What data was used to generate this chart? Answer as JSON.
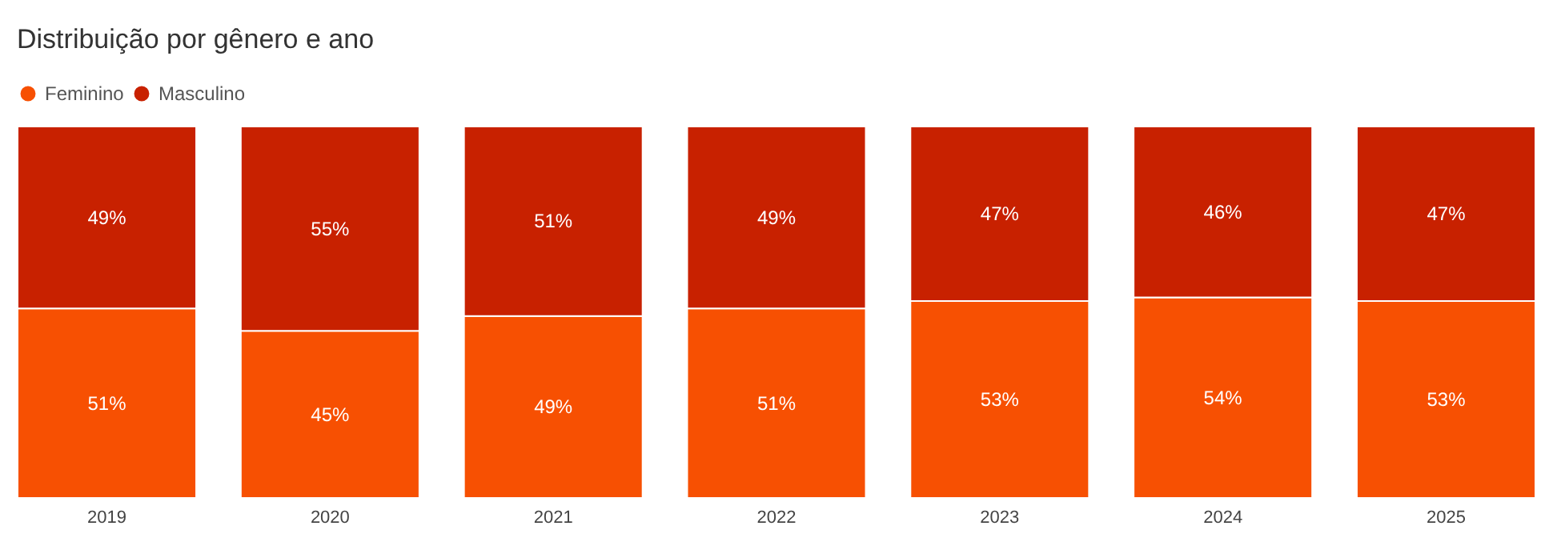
{
  "chart_data": {
    "type": "bar",
    "title": "Distribuição por gênero e ano",
    "stacked": true,
    "legend": "top left",
    "categories": [
      "2019",
      "2020",
      "2021",
      "2022",
      "2023",
      "2024",
      "2025"
    ],
    "series": [
      {
        "name": "Feminino",
        "color": "#f75002",
        "values": [
          51,
          45,
          49,
          51,
          53,
          54,
          53
        ],
        "value_labels": [
          "51%",
          "45%",
          "49%",
          "51%",
          "53%",
          "54%",
          "53%"
        ]
      },
      {
        "name": "Masculino",
        "color": "#c82100",
        "values": [
          49,
          55,
          51,
          49,
          47,
          46,
          47
        ],
        "value_labels": [
          "49%",
          "55%",
          "51%",
          "49%",
          "47%",
          "46%",
          "47%"
        ]
      }
    ]
  }
}
